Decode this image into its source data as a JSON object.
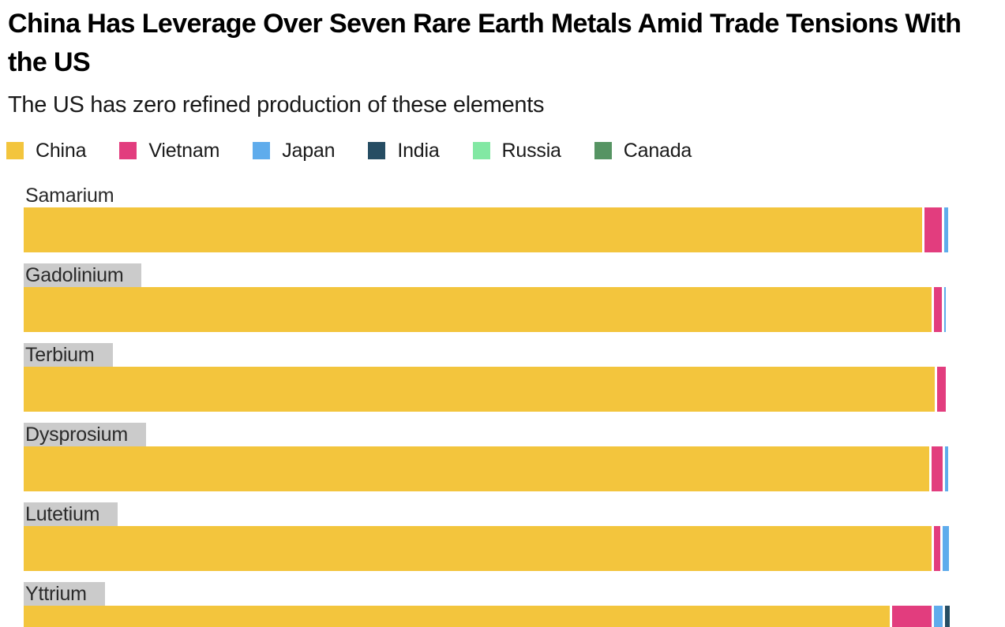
{
  "header": {
    "title": "China Has Leverage Over Seven Rare Earth Metals Amid Trade Tensions With the US",
    "subtitle": "The US has zero refined production of these elements"
  },
  "colors": {
    "china": "#F3C53D",
    "vietnam": "#E23D7E",
    "japan": "#5FACEC",
    "india": "#264D63",
    "russia": "#82E8A3",
    "canada": "#569463",
    "label_highlight": "#CBCBCB",
    "text": "#1A1A1A"
  },
  "legend": [
    {
      "label": "China",
      "color": "#F3C53D"
    },
    {
      "label": "Vietnam",
      "color": "#E23D7E"
    },
    {
      "label": "Japan",
      "color": "#5FACEC"
    },
    {
      "label": "India",
      "color": "#264D63"
    },
    {
      "label": "Russia",
      "color": "#82E8A3"
    },
    {
      "label": "Canada",
      "color": "#569463"
    }
  ],
  "chart_data": {
    "type": "bar",
    "orientation": "horizontal",
    "stacked": true,
    "unit": "percent of refined production (bar spans 0-100%)",
    "title": "China Has Leverage Over Seven Rare Earth Metals Amid Trade Tensions With the US",
    "subtitle": "The US has zero refined production of these elements",
    "legend_position": "top",
    "grid": false,
    "categories": [
      "Samarium",
      "Gadolinium",
      "Terbium",
      "Dysprosium",
      "Lutetium",
      "Yttrium"
    ],
    "rows": [
      {
        "metal": "Samarium",
        "label_highlighted": false,
        "segments": [
          {
            "name": "China",
            "value": 97.0
          },
          {
            "name": "Vietnam",
            "value": 1.9
          },
          {
            "name": "Japan",
            "value": 0.45
          }
        ]
      },
      {
        "metal": "Gadolinium",
        "label_highlighted": true,
        "segments": [
          {
            "name": "China",
            "value": 98.0
          },
          {
            "name": "Vietnam",
            "value": 0.9
          },
          {
            "name": "Japan",
            "value": 0.2
          }
        ]
      },
      {
        "metal": "Terbium",
        "label_highlighted": true,
        "segments": [
          {
            "name": "China",
            "value": 98.4
          },
          {
            "name": "Vietnam",
            "value": 0.9
          }
        ]
      },
      {
        "metal": "Dysprosium",
        "label_highlighted": true,
        "segments": [
          {
            "name": "China",
            "value": 97.8
          },
          {
            "name": "Vietnam",
            "value": 1.2
          },
          {
            "name": "Japan",
            "value": 0.3
          }
        ]
      },
      {
        "metal": "Lutetium",
        "label_highlighted": true,
        "segments": [
          {
            "name": "China",
            "value": 98.0
          },
          {
            "name": "Vietnam",
            "value": 0.7
          },
          {
            "name": "Japan",
            "value": 0.7
          }
        ]
      },
      {
        "metal": "Yttrium",
        "label_highlighted": true,
        "segments": [
          {
            "name": "China",
            "value": 93.5
          },
          {
            "name": "Vietnam",
            "value": 4.3
          },
          {
            "name": "Japan",
            "value": 0.9
          },
          {
            "name": "India",
            "value": 0.5
          }
        ]
      }
    ]
  }
}
